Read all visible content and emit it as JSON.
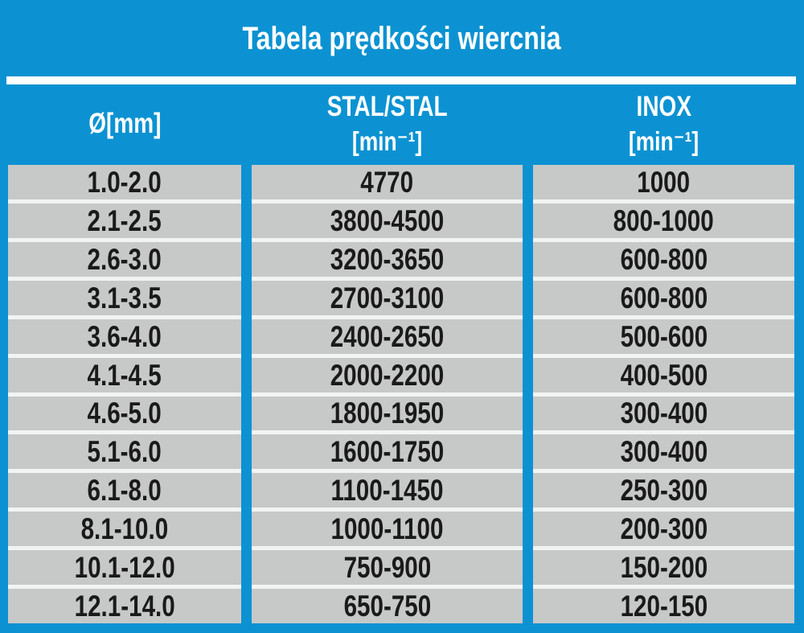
{
  "colors": {
    "background_blue": "#0C92D2",
    "cell_gray": "#C7C8C8",
    "row_separator": "#F2F3F3",
    "title_separator_bar": "#FFFFFF",
    "header_text": "#FFFFFF",
    "cell_text": "#1A1A1A"
  },
  "chart_data": {
    "type": "table",
    "title": "Tabela prędkości wiercnia",
    "column_ids": [
      "diameter",
      "stal-stal",
      "inox"
    ],
    "columns": [
      "Ø[mm]",
      "STAL/STAL [min⁻¹]",
      "INOX [min⁻¹]"
    ],
    "headers": [
      {
        "line1": "Ø[mm]",
        "line2": ""
      },
      {
        "line1": "STAL/STAL",
        "line2": "[min⁻¹]"
      },
      {
        "line1": "INOX",
        "line2": "[min⁻¹]"
      }
    ],
    "rows": [
      [
        "1.0-2.0",
        "4770",
        "1000"
      ],
      [
        "2.1-2.5",
        "3800-4500",
        "800-1000"
      ],
      [
        "2.6-3.0",
        "3200-3650",
        "600-800"
      ],
      [
        "3.1-3.5",
        "2700-3100",
        "600-800"
      ],
      [
        "3.6-4.0",
        "2400-2650",
        "500-600"
      ],
      [
        "4.1-4.5",
        "2000-2200",
        "400-500"
      ],
      [
        "4.6-5.0",
        "1800-1950",
        "300-400"
      ],
      [
        "5.1-6.0",
        "1600-1750",
        "300-400"
      ],
      [
        "6.1-8.0",
        "1100-1450",
        "250-300"
      ],
      [
        "8.1-10.0",
        "1000-1100",
        "200-300"
      ],
      [
        "10.1-12.0",
        "750-900",
        "150-200"
      ],
      [
        "12.1-14.0",
        "650-750",
        "120-150"
      ]
    ]
  }
}
